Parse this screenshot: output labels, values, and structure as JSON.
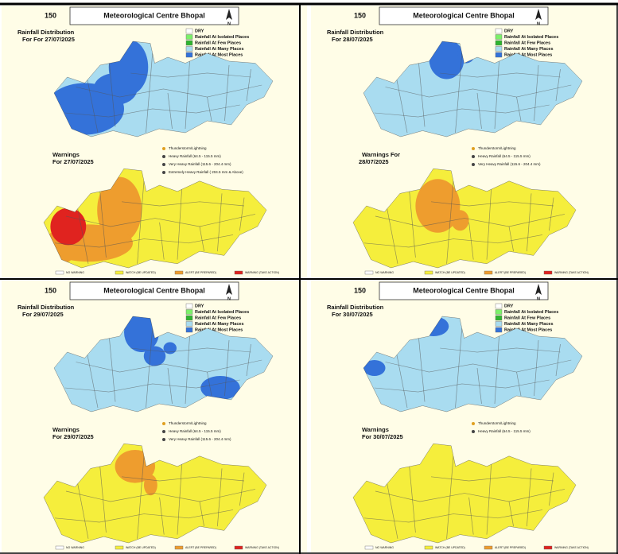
{
  "panels": [
    {
      "header": "Meteorological Centre Bhopal",
      "logo": "150",
      "north": "N",
      "rainfall_lines": [
        "Rainfall Distribution",
        "For For 27/07/2025"
      ],
      "rainfall_legend": [
        {
          "label": "DRY",
          "color": "#ffffff"
        },
        {
          "label": "Rainfall At Isolated Places",
          "color": "#7cf06a"
        },
        {
          "label": "Rainfall At Few Places",
          "color": "#2fb52f"
        },
        {
          "label": "Rainfall At Many Places",
          "color": "#a9dcf0"
        },
        {
          "label": "Rainfall At Most Places",
          "color": "#3472d9"
        }
      ],
      "warnings_lines": [
        "Warnings",
        "For 27/07/2025"
      ],
      "warning_items": [
        "Thunderstorm/Lightning",
        "Heavy Rainfall (64.5 - 115.5 mm)",
        "Very Heavy Rainfall (115.6 - 204.4 mm)",
        "Extremely Heavy Rainfall ( 204.5 mm & Above)"
      ],
      "warning_levels": [
        {
          "label": "NO WARNING",
          "color": "#ffffff"
        },
        {
          "label": "WATCH (BE UPDATED)",
          "color": "#f5ee3c"
        },
        {
          "label": "ALERT (BE PREPARED)",
          "color": "#ee9d2e"
        },
        {
          "label": "WARNING (TAKE ACTION)",
          "color": "#e0231f"
        }
      ]
    },
    {
      "header": "Meteorological Centre Bhopal",
      "logo": "150",
      "north": "N",
      "rainfall_lines": [
        "Rainfall Distribution",
        "For 28/07/2025"
      ],
      "rainfall_legend": [
        {
          "label": "DRY",
          "color": "#ffffff"
        },
        {
          "label": "Rainfall At Isolated Places",
          "color": "#7cf06a"
        },
        {
          "label": "Rainfall At Few Places",
          "color": "#2fb52f"
        },
        {
          "label": "Rainfall At Many Places",
          "color": "#a9dcf0"
        },
        {
          "label": "Rainfall At Most Places",
          "color": "#3472d9"
        }
      ],
      "warnings_lines": [
        "Warnings For",
        "28/07/2025"
      ],
      "warning_items": [
        "Thunderstorm/Lightning",
        "Heavy Rainfall (64.5 - 115.5 mm)",
        "Very Heavy Rainfall (115.6 - 204.4 mm)"
      ],
      "warning_levels": [
        {
          "label": "NO WARNING",
          "color": "#ffffff"
        },
        {
          "label": "WATCH (BE UPDATED)",
          "color": "#f5ee3c"
        },
        {
          "label": "ALERT (BE PREPARED)",
          "color": "#ee9d2e"
        },
        {
          "label": "WARNING (TAKE ACTION)",
          "color": "#e0231f"
        }
      ]
    },
    {
      "header": "Meteorological Centre Bhopal",
      "logo": "150",
      "north": "N",
      "rainfall_lines": [
        "Rainfall Distribution",
        "For 29/07/2025"
      ],
      "rainfall_legend": [
        {
          "label": "DRY",
          "color": "#ffffff"
        },
        {
          "label": "Rainfall At Isolated Places",
          "color": "#7cf06a"
        },
        {
          "label": "Rainfall At Few Places",
          "color": "#2fb52f"
        },
        {
          "label": "Rainfall At Many Places",
          "color": "#a9dcf0"
        },
        {
          "label": "Rainfall At Most Places",
          "color": "#3472d9"
        }
      ],
      "warnings_lines": [
        "Warnings",
        "For 29/07/2025"
      ],
      "warning_items": [
        "Thunderstorm/Lightning",
        "Heavy Rainfall (64.5 - 115.5 mm)",
        "Very Heavy Rainfall (115.6 - 204.4 mm)"
      ],
      "warning_levels": [
        {
          "label": "NO WARNING",
          "color": "#ffffff"
        },
        {
          "label": "WATCH (BE UPDATED)",
          "color": "#f5ee3c"
        },
        {
          "label": "ALERT (BE PREPARED)",
          "color": "#ee9d2e"
        },
        {
          "label": "WARNING (TAKE ACTION)",
          "color": "#e0231f"
        }
      ]
    },
    {
      "header": "Meteorological Centre Bhopal",
      "logo": "150",
      "north": "N",
      "rainfall_lines": [
        "Rainfall Distribution",
        "For 30/07/2025"
      ],
      "rainfall_legend": [
        {
          "label": "DRY",
          "color": "#ffffff"
        },
        {
          "label": "Rainfall At Isolated Places",
          "color": "#7cf06a"
        },
        {
          "label": "Rainfall At Few Places",
          "color": "#2fb52f"
        },
        {
          "label": "Rainfall At Many Places",
          "color": "#a9dcf0"
        },
        {
          "label": "Rainfall At Most Places",
          "color": "#3472d9"
        }
      ],
      "warnings_lines": [
        "Warnings",
        "For 30/07/2025"
      ],
      "warning_items": [
        "Thunderstorm/Lightning",
        "Heavy Rainfall (64.5 - 115.5 mm)"
      ],
      "warning_levels": [
        {
          "label": "NO WARNING",
          "color": "#ffffff"
        },
        {
          "label": "WATCH (BE UPDATED)",
          "color": "#f5ee3c"
        },
        {
          "label": "ALERT (BE PREPARED)",
          "color": "#ee9d2e"
        },
        {
          "label": "WARNING (TAKE ACTION)",
          "color": "#e0231f"
        }
      ]
    }
  ]
}
